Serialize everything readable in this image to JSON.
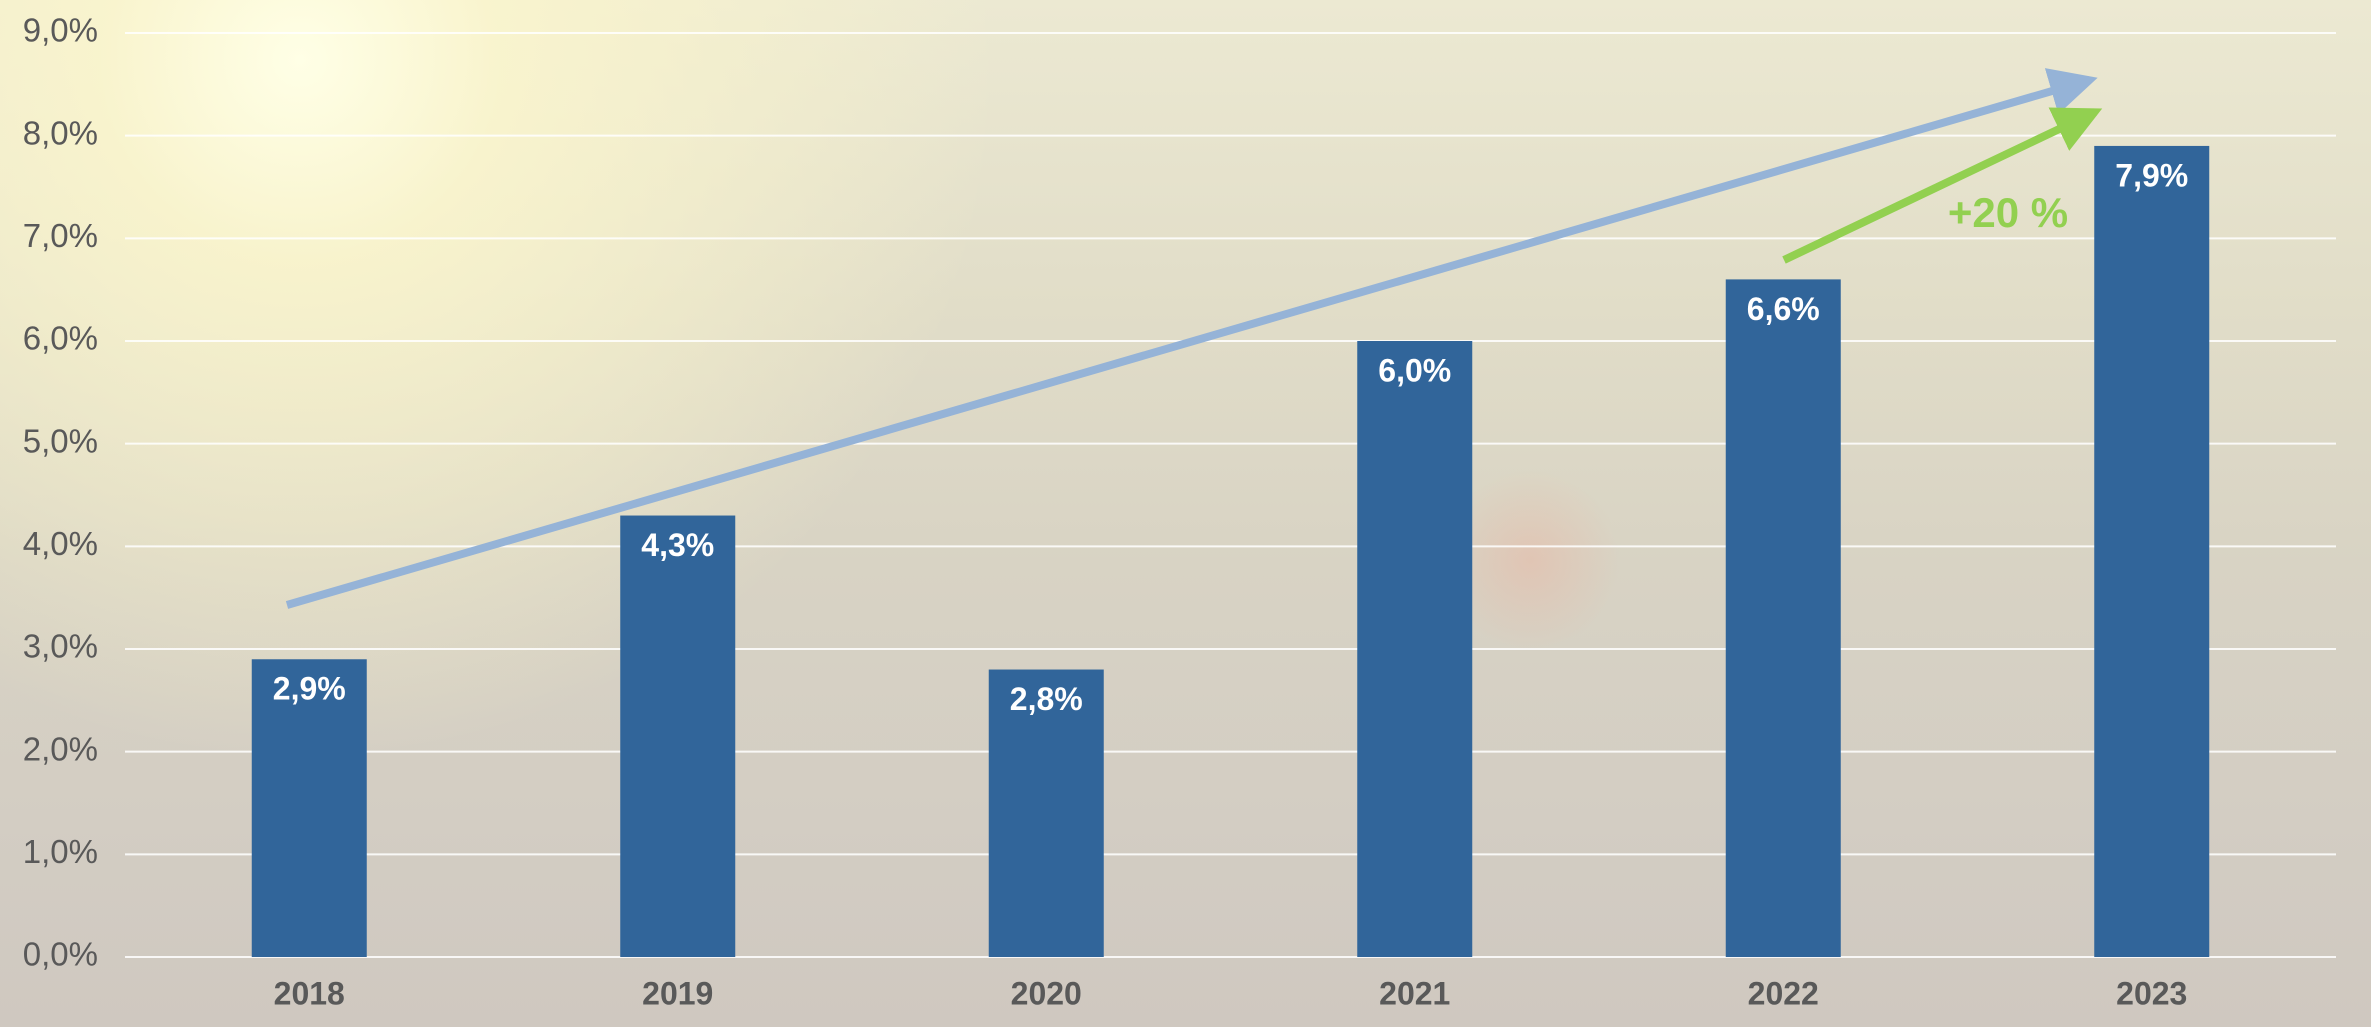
{
  "chart_data": {
    "type": "bar",
    "categories": [
      "2018",
      "2019",
      "2020",
      "2021",
      "2022",
      "2023"
    ],
    "values": [
      2.9,
      4.3,
      2.8,
      6.0,
      6.6,
      7.9
    ],
    "value_labels": [
      "2,9%",
      "4,3%",
      "2,8%",
      "6,0%",
      "6,6%",
      "7,9%"
    ],
    "color": "#31659a",
    "ylim": [
      0,
      9
    ],
    "yticks": [
      {
        "value": 0,
        "label": "0,0%"
      },
      {
        "value": 1,
        "label": "1,0%"
      },
      {
        "value": 2,
        "label": "2,0%"
      },
      {
        "value": 3,
        "label": "3,0%"
      },
      {
        "value": 4,
        "label": "4,0%"
      },
      {
        "value": 5,
        "label": "5,0%"
      },
      {
        "value": 6,
        "label": "6,0%"
      },
      {
        "value": 7,
        "label": "7,0%"
      },
      {
        "value": 8,
        "label": "8,0%"
      },
      {
        "value": 9,
        "label": "9,0%"
      }
    ],
    "grid": true,
    "annotation": "+20 %"
  }
}
